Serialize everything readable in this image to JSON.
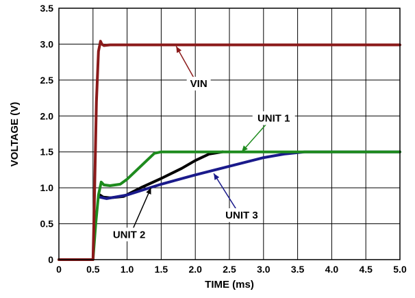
{
  "chart_data": {
    "type": "line",
    "xlabel": "TIME (ms)",
    "ylabel": "VOLTAGE (V)",
    "xlim": [
      0,
      5.0
    ],
    "ylim": [
      0,
      3.5
    ],
    "x_ticks": [
      "0",
      "0.5",
      "1.0",
      "1.5",
      "2.0",
      "2.5",
      "3.0",
      "3.5",
      "4.0",
      "4.5",
      "5.0"
    ],
    "y_ticks": [
      "0",
      "0.5",
      "1.0",
      "1.5",
      "2.0",
      "2.5",
      "3.0",
      "3.5"
    ],
    "grid": true,
    "series": [
      {
        "name": "VIN",
        "color": "#8B1A1A",
        "x": [
          0.0,
          0.5,
          0.52,
          0.55,
          0.58,
          0.61,
          0.63,
          0.66,
          0.75,
          1.0,
          2.0,
          3.0,
          4.0,
          5.0
        ],
        "y": [
          0.0,
          0.0,
          0.8,
          2.2,
          2.9,
          3.04,
          3.0,
          2.98,
          2.99,
          2.99,
          2.99,
          2.99,
          2.99,
          2.99
        ]
      },
      {
        "name": "UNIT 1",
        "color": "#1E8B1E",
        "x": [
          0.0,
          0.5,
          0.54,
          0.58,
          0.62,
          0.66,
          0.75,
          0.9,
          1.0,
          1.2,
          1.4,
          1.5,
          2.0,
          3.0,
          4.0,
          5.0
        ],
        "y": [
          0.0,
          0.0,
          0.5,
          0.9,
          1.08,
          1.04,
          1.03,
          1.05,
          1.12,
          1.3,
          1.48,
          1.5,
          1.5,
          1.5,
          1.5,
          1.5
        ]
      },
      {
        "name": "UNIT 2",
        "color": "#000000",
        "x": [
          0.6,
          0.65,
          0.75,
          0.95,
          1.2,
          1.5,
          1.8,
          2.0,
          2.2,
          2.4
        ],
        "y": [
          0.9,
          0.87,
          0.86,
          0.88,
          1.0,
          1.13,
          1.27,
          1.38,
          1.47,
          1.5
        ]
      },
      {
        "name": "UNIT 3",
        "color": "#1A1A8B",
        "x": [
          0.6,
          0.7,
          1.0,
          1.5,
          2.0,
          2.5,
          3.0,
          3.3,
          3.6,
          4.0,
          5.0
        ],
        "y": [
          0.87,
          0.85,
          0.9,
          1.05,
          1.18,
          1.3,
          1.42,
          1.47,
          1.5,
          1.5,
          1.5
        ]
      }
    ],
    "annotations": [
      {
        "text": "VIN",
        "color": "#8B1A1A",
        "target": [
          1.72,
          2.97
        ],
        "label": [
          2.05,
          2.45
        ]
      },
      {
        "text": "UNIT 1",
        "color": "#1E8B1E",
        "target": [
          2.68,
          1.5
        ],
        "label": [
          3.15,
          1.97
        ]
      },
      {
        "text": "UNIT 2",
        "color": "#000000",
        "target": [
          1.35,
          1.0
        ],
        "label": [
          1.03,
          0.35
        ]
      },
      {
        "text": "UNIT 3",
        "color": "#1A1A8B",
        "target": [
          2.27,
          1.2
        ],
        "label": [
          2.68,
          0.62
        ]
      }
    ]
  }
}
